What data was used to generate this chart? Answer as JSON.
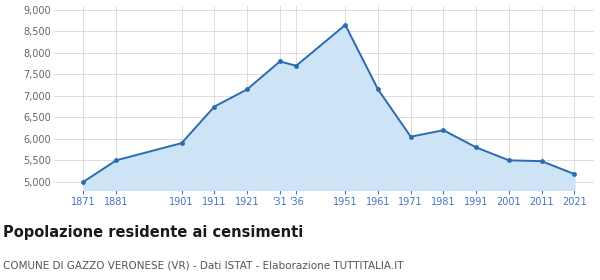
{
  "years": [
    1871,
    1881,
    1901,
    1911,
    1921,
    1931,
    1936,
    1951,
    1961,
    1971,
    1981,
    1991,
    2001,
    2011,
    2021
  ],
  "population": [
    5000,
    5500,
    5900,
    6750,
    7150,
    7800,
    7700,
    8650,
    7150,
    6050,
    6200,
    5800,
    5500,
    5480,
    5180
  ],
  "line_color": "#2b6cb0",
  "fill_color": "#cce4f6",
  "marker_color": "#2b6cb0",
  "grid_color": "#d0d0d0",
  "background_color": "#ffffff",
  "title": "Popolazione residente ai censimenti",
  "subtitle": "COMUNE DI GAZZO VERONESE (VR) - Dati ISTAT - Elaborazione TUTTITALIA.IT",
  "ylim": [
    4800,
    9100
  ],
  "yticks": [
    5000,
    5500,
    6000,
    6500,
    7000,
    7500,
    8000,
    8500,
    9000
  ],
  "title_fontsize": 10.5,
  "subtitle_fontsize": 7.5,
  "axis_label_color": "#4472c4",
  "tick_label_color": "#666666",
  "xtick_positions": [
    1871,
    1881,
    1901,
    1911,
    1921,
    1931,
    1936,
    1951,
    1961,
    1971,
    1981,
    1991,
    2001,
    2011,
    2021
  ],
  "xtick_labels": [
    "1871",
    "1881",
    "1901",
    "1911",
    "1921",
    "'31",
    "'36",
    "1951",
    "1961",
    "1971",
    "1981",
    "1991",
    "2001",
    "2011",
    "2021"
  ]
}
